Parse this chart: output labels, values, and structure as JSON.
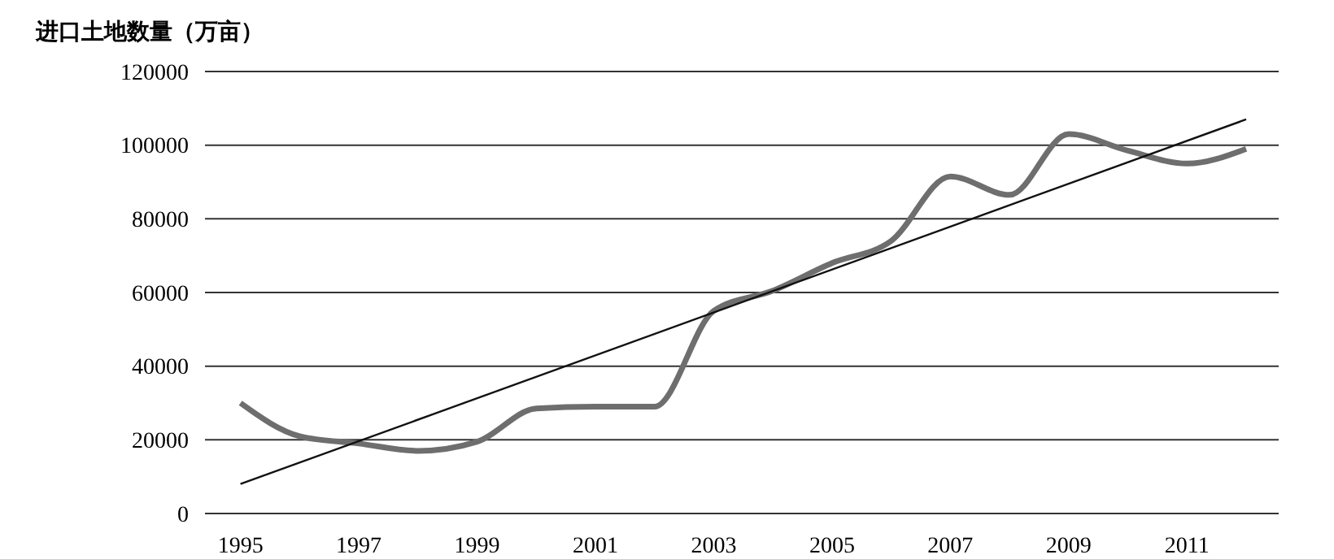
{
  "chart_data": {
    "type": "line",
    "ylabel": "进口土地数量（万亩）",
    "x": [
      1995,
      1996,
      1997,
      1998,
      1999,
      2000,
      2001,
      2002,
      2003,
      2004,
      2005,
      2006,
      2007,
      2008,
      2009,
      2010,
      2011,
      2012
    ],
    "xlim": [
      1994.4,
      2012.55
    ],
    "xticks": [
      1995,
      1997,
      1999,
      2001,
      2003,
      2005,
      2007,
      2009,
      2011
    ],
    "ylim": [
      0,
      120000
    ],
    "yticks": [
      0,
      20000,
      40000,
      60000,
      80000,
      100000,
      120000
    ],
    "grid": "y",
    "marker": "none",
    "line_style": "solid",
    "series": [
      {
        "color": "#6e6e6e",
        "values": [
          30000,
          21000,
          19000,
          17000,
          19500,
          28500,
          29000,
          29000,
          55000,
          60500,
          68000,
          74000,
          91500,
          86500,
          103000,
          98500,
          95000,
          99000
        ]
      },
      {
        "type": "line",
        "color": "#111111",
        "x": [
          1995,
          2012
        ],
        "values": [
          8000,
          107000
        ]
      }
    ]
  }
}
